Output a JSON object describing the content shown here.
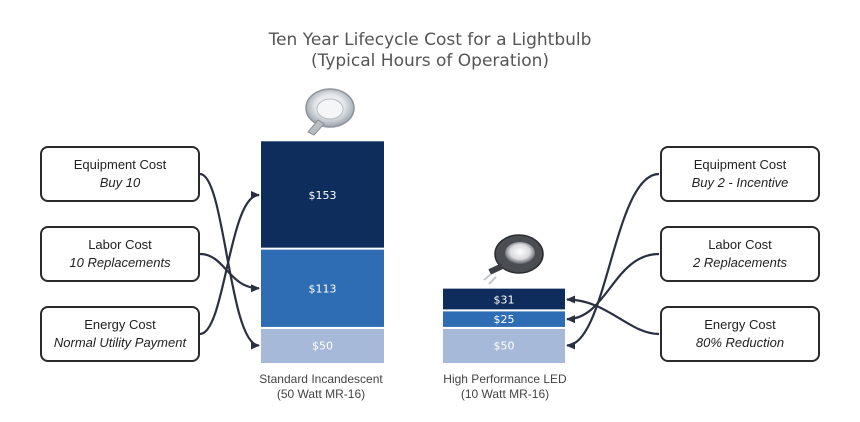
{
  "chart_data": {
    "type": "bar",
    "stacked": true,
    "title": "Ten Year Lifecycle Cost for a Lightbulb",
    "subtitle": "(Typical Hours of Operation)",
    "categories": [
      {
        "name": "Standard Incandescent",
        "detail": "(50 Watt MR-16)"
      },
      {
        "name": "High Performance LED",
        "detail": "(10 Watt MR-16)"
      }
    ],
    "series": [
      {
        "name": "Equipment Cost",
        "values": [
          50,
          50
        ],
        "labels": [
          "$50",
          "$50"
        ],
        "color": "#a7b9d9"
      },
      {
        "name": "Labor Cost",
        "values": [
          113,
          25
        ],
        "labels": [
          "$113",
          "$25"
        ],
        "color": "#2e6db3"
      },
      {
        "name": "Energy Cost",
        "values": [
          153,
          31
        ],
        "labels": [
          "$153",
          "$31"
        ],
        "color": "#0f2d5c"
      }
    ],
    "ylim": [
      0,
      316
    ],
    "grid": false,
    "legend": "none"
  },
  "callouts": {
    "left": [
      {
        "title": "Equipment Cost",
        "sub": "Buy 10"
      },
      {
        "title": "Labor Cost",
        "sub": "10 Replacements"
      },
      {
        "title": "Energy Cost",
        "sub": "Normal Utility Payment"
      }
    ],
    "right": [
      {
        "title": "Equipment Cost",
        "sub": "Buy 2 - Incentive"
      },
      {
        "title": "Labor Cost",
        "sub": "2 Replacements"
      },
      {
        "title": "Energy Cost",
        "sub": "80% Reduction"
      }
    ]
  },
  "icons": {
    "left": "halogen-bulb-icon",
    "right": "led-bulb-icon"
  }
}
